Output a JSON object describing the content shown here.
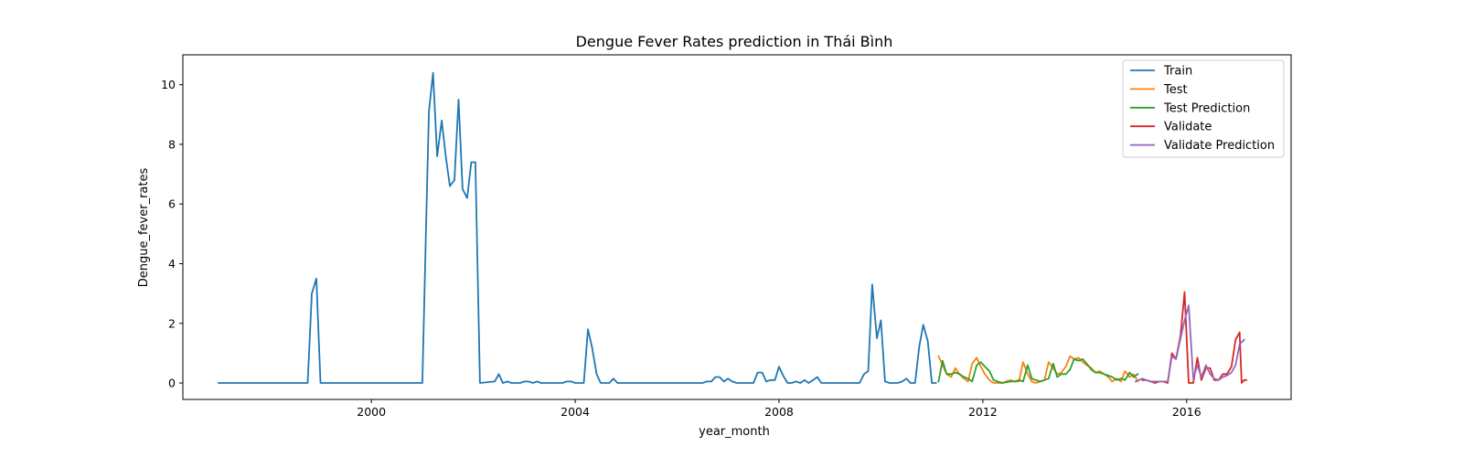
{
  "chart_data": {
    "type": "line",
    "title": "Dengue Fever Rates prediction in Thái Bình",
    "xlabel": "year_month",
    "ylabel": "Dengue_fever_rates",
    "xlim": [
      1996.3,
      2018.05
    ],
    "ylim": [
      -0.55,
      11.0
    ],
    "x_ticks": [
      2000,
      2004,
      2008,
      2012,
      2016
    ],
    "x_tick_labels": [
      "2000",
      "2004",
      "2008",
      "2012",
      "2016"
    ],
    "y_ticks": [
      0,
      2,
      4,
      6,
      8,
      10
    ],
    "y_tick_labels": [
      "0",
      "2",
      "4",
      "6",
      "8",
      "10"
    ],
    "grid": false,
    "legend_position": "top-right",
    "series": [
      {
        "name": "Train",
        "color": "#1f77b4",
        "points": [
          [
            1997.0,
            0
          ],
          [
            1998.75,
            0
          ],
          [
            1998.83,
            3.0
          ],
          [
            1998.92,
            3.5
          ],
          [
            1999.0,
            0
          ],
          [
            2001.0,
            0
          ],
          [
            2001.08,
            5.8
          ],
          [
            2001.13,
            9.1
          ],
          [
            2001.21,
            10.4
          ],
          [
            2001.29,
            7.6
          ],
          [
            2001.38,
            8.8
          ],
          [
            2001.46,
            7.6
          ],
          [
            2001.54,
            6.6
          ],
          [
            2001.63,
            6.8
          ],
          [
            2001.71,
            9.5
          ],
          [
            2001.79,
            6.5
          ],
          [
            2001.88,
            6.2
          ],
          [
            2001.96,
            7.4
          ],
          [
            2002.04,
            7.4
          ],
          [
            2002.13,
            0
          ],
          [
            2002.42,
            0.05
          ],
          [
            2002.5,
            0.3
          ],
          [
            2002.58,
            0
          ],
          [
            2002.67,
            0.05
          ],
          [
            2002.75,
            0
          ],
          [
            2002.92,
            0
          ],
          [
            2003.0,
            0.05
          ],
          [
            2003.08,
            0.05
          ],
          [
            2003.17,
            0
          ],
          [
            2003.25,
            0.05
          ],
          [
            2003.33,
            0
          ],
          [
            2003.75,
            0
          ],
          [
            2003.83,
            0.05
          ],
          [
            2003.92,
            0.05
          ],
          [
            2004.0,
            0
          ],
          [
            2004.17,
            0
          ],
          [
            2004.25,
            1.8
          ],
          [
            2004.33,
            1.2
          ],
          [
            2004.42,
            0.3
          ],
          [
            2004.5,
            0
          ],
          [
            2004.67,
            0
          ],
          [
            2004.75,
            0.15
          ],
          [
            2004.83,
            0
          ],
          [
            2006.5,
            0
          ],
          [
            2006.58,
            0.05
          ],
          [
            2006.67,
            0.05
          ],
          [
            2006.75,
            0.2
          ],
          [
            2006.83,
            0.2
          ],
          [
            2006.92,
            0.05
          ],
          [
            2007.0,
            0.15
          ],
          [
            2007.08,
            0.05
          ],
          [
            2007.17,
            0
          ],
          [
            2007.5,
            0
          ],
          [
            2007.58,
            0.35
          ],
          [
            2007.67,
            0.35
          ],
          [
            2007.75,
            0.05
          ],
          [
            2007.83,
            0.1
          ],
          [
            2007.92,
            0.1
          ],
          [
            2008.0,
            0.55
          ],
          [
            2008.08,
            0.25
          ],
          [
            2008.17,
            0
          ],
          [
            2008.25,
            0
          ],
          [
            2008.33,
            0.05
          ],
          [
            2008.42,
            0
          ],
          [
            2008.5,
            0.1
          ],
          [
            2008.58,
            0
          ],
          [
            2008.67,
            0.1
          ],
          [
            2008.75,
            0.2
          ],
          [
            2008.83,
            0
          ],
          [
            2009.58,
            0
          ],
          [
            2009.67,
            0.3
          ],
          [
            2009.75,
            0.4
          ],
          [
            2009.83,
            3.3
          ],
          [
            2009.92,
            1.5
          ],
          [
            2010.0,
            2.1
          ],
          [
            2010.08,
            0.05
          ],
          [
            2010.17,
            0
          ],
          [
            2010.33,
            0
          ],
          [
            2010.42,
            0.05
          ],
          [
            2010.5,
            0.15
          ],
          [
            2010.58,
            0
          ],
          [
            2010.67,
            0
          ],
          [
            2010.75,
            1.2
          ],
          [
            2010.83,
            1.95
          ],
          [
            2010.92,
            1.4
          ],
          [
            2011.0,
            0
          ],
          [
            2011.08,
            0
          ]
        ]
      },
      {
        "name": "Test",
        "color": "#ff7f0e",
        "points": [
          [
            2011.13,
            0.9
          ],
          [
            2011.21,
            0.6
          ],
          [
            2011.29,
            0.3
          ],
          [
            2011.38,
            0.2
          ],
          [
            2011.46,
            0.5
          ],
          [
            2011.54,
            0.3
          ],
          [
            2011.63,
            0.15
          ],
          [
            2011.71,
            0.05
          ],
          [
            2011.79,
            0.65
          ],
          [
            2011.88,
            0.85
          ],
          [
            2011.96,
            0.55
          ],
          [
            2012.04,
            0.3
          ],
          [
            2012.13,
            0.1
          ],
          [
            2012.21,
            0
          ],
          [
            2012.38,
            0
          ],
          [
            2012.46,
            0.05
          ],
          [
            2012.54,
            0.1
          ],
          [
            2012.63,
            0.05
          ],
          [
            2012.71,
            0.05
          ],
          [
            2012.79,
            0.7
          ],
          [
            2012.88,
            0.3
          ],
          [
            2012.96,
            0.05
          ],
          [
            2013.04,
            0
          ],
          [
            2013.13,
            0.05
          ],
          [
            2013.21,
            0.1
          ],
          [
            2013.29,
            0.7
          ],
          [
            2013.38,
            0.5
          ],
          [
            2013.46,
            0.3
          ],
          [
            2013.54,
            0.35
          ],
          [
            2013.63,
            0.55
          ],
          [
            2013.71,
            0.9
          ],
          [
            2013.79,
            0.8
          ],
          [
            2013.88,
            0.85
          ],
          [
            2013.96,
            0.7
          ],
          [
            2014.04,
            0.6
          ],
          [
            2014.13,
            0.5
          ],
          [
            2014.21,
            0.35
          ],
          [
            2014.29,
            0.4
          ],
          [
            2014.38,
            0.3
          ],
          [
            2014.46,
            0.2
          ],
          [
            2014.54,
            0.05
          ],
          [
            2014.63,
            0.15
          ],
          [
            2014.71,
            0.05
          ],
          [
            2014.79,
            0.4
          ],
          [
            2014.88,
            0.2
          ],
          [
            2014.96,
            0.3
          ],
          [
            2015.04,
            0.05
          ]
        ]
      },
      {
        "name": "Test Prediction",
        "color": "#2ca02c",
        "points": [
          [
            2011.13,
            0.05
          ],
          [
            2011.21,
            0.75
          ],
          [
            2011.29,
            0.3
          ],
          [
            2011.38,
            0.3
          ],
          [
            2011.46,
            0.35
          ],
          [
            2011.54,
            0.3
          ],
          [
            2011.63,
            0.2
          ],
          [
            2011.71,
            0.15
          ],
          [
            2011.79,
            0.05
          ],
          [
            2011.88,
            0.6
          ],
          [
            2011.96,
            0.7
          ],
          [
            2012.04,
            0.55
          ],
          [
            2012.13,
            0.4
          ],
          [
            2012.21,
            0.1
          ],
          [
            2012.29,
            0.05
          ],
          [
            2012.38,
            0
          ],
          [
            2012.54,
            0.05
          ],
          [
            2012.63,
            0.05
          ],
          [
            2012.71,
            0.1
          ],
          [
            2012.79,
            0.05
          ],
          [
            2012.88,
            0.6
          ],
          [
            2012.96,
            0.15
          ],
          [
            2013.04,
            0.1
          ],
          [
            2013.13,
            0.05
          ],
          [
            2013.21,
            0.1
          ],
          [
            2013.29,
            0.15
          ],
          [
            2013.38,
            0.65
          ],
          [
            2013.46,
            0.2
          ],
          [
            2013.54,
            0.3
          ],
          [
            2013.63,
            0.3
          ],
          [
            2013.71,
            0.45
          ],
          [
            2013.79,
            0.8
          ],
          [
            2013.88,
            0.75
          ],
          [
            2013.96,
            0.8
          ],
          [
            2014.04,
            0.65
          ],
          [
            2014.13,
            0.45
          ],
          [
            2014.21,
            0.35
          ],
          [
            2014.29,
            0.35
          ],
          [
            2014.38,
            0.3
          ],
          [
            2014.46,
            0.25
          ],
          [
            2014.54,
            0.2
          ],
          [
            2014.63,
            0.1
          ],
          [
            2014.71,
            0.15
          ],
          [
            2014.79,
            0.1
          ],
          [
            2014.88,
            0.35
          ],
          [
            2014.96,
            0.2
          ],
          [
            2015.04,
            0.3
          ]
        ]
      },
      {
        "name": "Validate",
        "color": "#d62728",
        "points": [
          [
            2015.13,
            0.1
          ],
          [
            2015.21,
            0.1
          ],
          [
            2015.29,
            0.05
          ],
          [
            2015.38,
            0
          ],
          [
            2015.46,
            0.05
          ],
          [
            2015.54,
            0.05
          ],
          [
            2015.63,
            0
          ],
          [
            2015.71,
            1.0
          ],
          [
            2015.79,
            0.8
          ],
          [
            2015.88,
            1.6
          ],
          [
            2015.96,
            3.05
          ],
          [
            2016.04,
            0
          ],
          [
            2016.13,
            0
          ],
          [
            2016.21,
            0.85
          ],
          [
            2016.29,
            0.1
          ],
          [
            2016.38,
            0.5
          ],
          [
            2016.46,
            0.5
          ],
          [
            2016.54,
            0.1
          ],
          [
            2016.63,
            0.1
          ],
          [
            2016.71,
            0.3
          ],
          [
            2016.79,
            0.3
          ],
          [
            2016.88,
            0.55
          ],
          [
            2016.96,
            1.45
          ],
          [
            2017.04,
            1.7
          ],
          [
            2017.08,
            0
          ],
          [
            2017.13,
            0.1
          ],
          [
            2017.17,
            0.1
          ]
        ]
      },
      {
        "name": "Validate Prediction",
        "color": "#9467bd",
        "points": [
          [
            2015.0,
            0.05
          ],
          [
            2015.13,
            0.15
          ],
          [
            2015.21,
            0.1
          ],
          [
            2015.29,
            0.05
          ],
          [
            2015.38,
            0.05
          ],
          [
            2015.46,
            0.05
          ],
          [
            2015.54,
            0.05
          ],
          [
            2015.63,
            0.05
          ],
          [
            2015.71,
            0.9
          ],
          [
            2015.79,
            0.8
          ],
          [
            2015.88,
            1.5
          ],
          [
            2015.96,
            2.1
          ],
          [
            2016.04,
            2.6
          ],
          [
            2016.13,
            0.15
          ],
          [
            2016.21,
            0.6
          ],
          [
            2016.29,
            0.2
          ],
          [
            2016.38,
            0.6
          ],
          [
            2016.46,
            0.3
          ],
          [
            2016.54,
            0.15
          ],
          [
            2016.63,
            0.1
          ],
          [
            2016.71,
            0.2
          ],
          [
            2016.79,
            0.25
          ],
          [
            2016.88,
            0.35
          ],
          [
            2016.96,
            0.6
          ],
          [
            2017.04,
            1.3
          ],
          [
            2017.13,
            1.45
          ]
        ]
      }
    ]
  }
}
